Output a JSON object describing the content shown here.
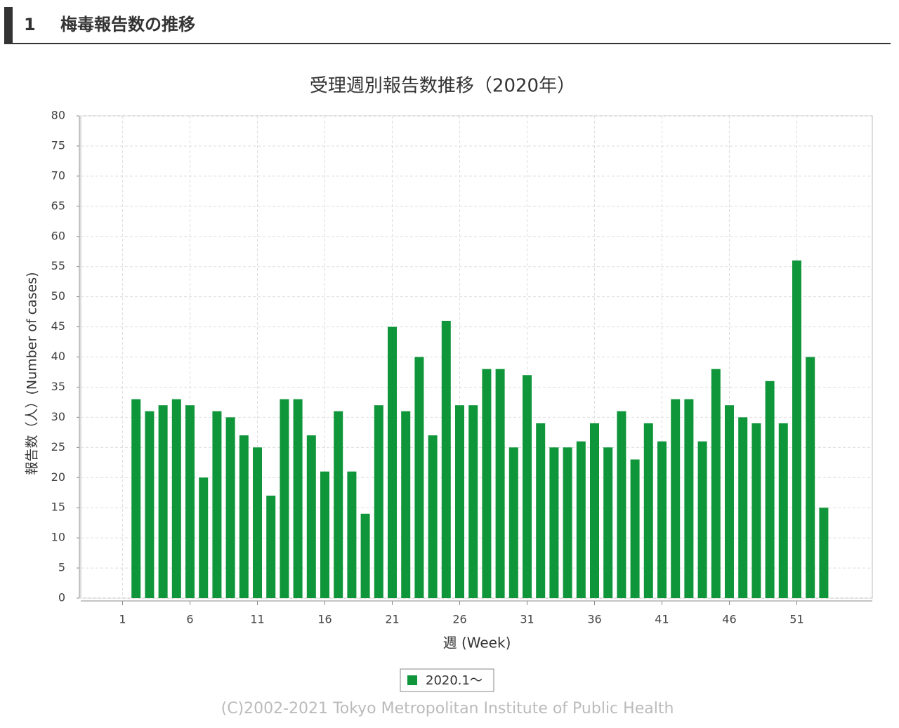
{
  "header": {
    "number": "1",
    "title": "梅毒報告数の推移"
  },
  "chart_data": {
    "type": "bar",
    "title": "受理週別報告数推移（2020年）",
    "x_label": "週 (Week)",
    "y_label": "報告数（人）(Number of cases)",
    "x": [
      2,
      3,
      4,
      5,
      6,
      7,
      8,
      9,
      10,
      11,
      12,
      13,
      14,
      15,
      16,
      17,
      18,
      19,
      20,
      21,
      22,
      23,
      24,
      25,
      26,
      27,
      28,
      29,
      30,
      31,
      32,
      33,
      34,
      35,
      36,
      37,
      38,
      39,
      40,
      41,
      42,
      43,
      44,
      45,
      46,
      47,
      48,
      49,
      50,
      51,
      52,
      53
    ],
    "series": [
      {
        "name": "2020.1～",
        "color": "#10963a",
        "values": [
          33,
          31,
          32,
          33,
          32,
          20,
          31,
          30,
          27,
          25,
          17,
          33,
          33,
          27,
          21,
          31,
          21,
          14,
          32,
          45,
          31,
          40,
          27,
          46,
          32,
          32,
          38,
          38,
          25,
          37,
          29,
          25,
          25,
          26,
          29,
          25,
          31,
          23,
          29,
          26,
          33,
          33,
          26,
          38,
          32,
          30,
          29,
          36,
          29,
          56,
          40,
          15
        ]
      }
    ],
    "xlim": [
      -2.1,
      56.6
    ],
    "xticks": [
      1,
      6,
      11,
      16,
      21,
      26,
      31,
      36,
      41,
      46,
      51
    ],
    "ylim": [
      0,
      80
    ],
    "yticks": [
      0,
      5,
      10,
      15,
      20,
      25,
      30,
      35,
      40,
      45,
      50,
      55,
      60,
      65,
      70,
      75,
      80
    ],
    "grid": true,
    "footer": "(C)2002-2021 Tokyo Metropolitan Institute of Public Health"
  }
}
